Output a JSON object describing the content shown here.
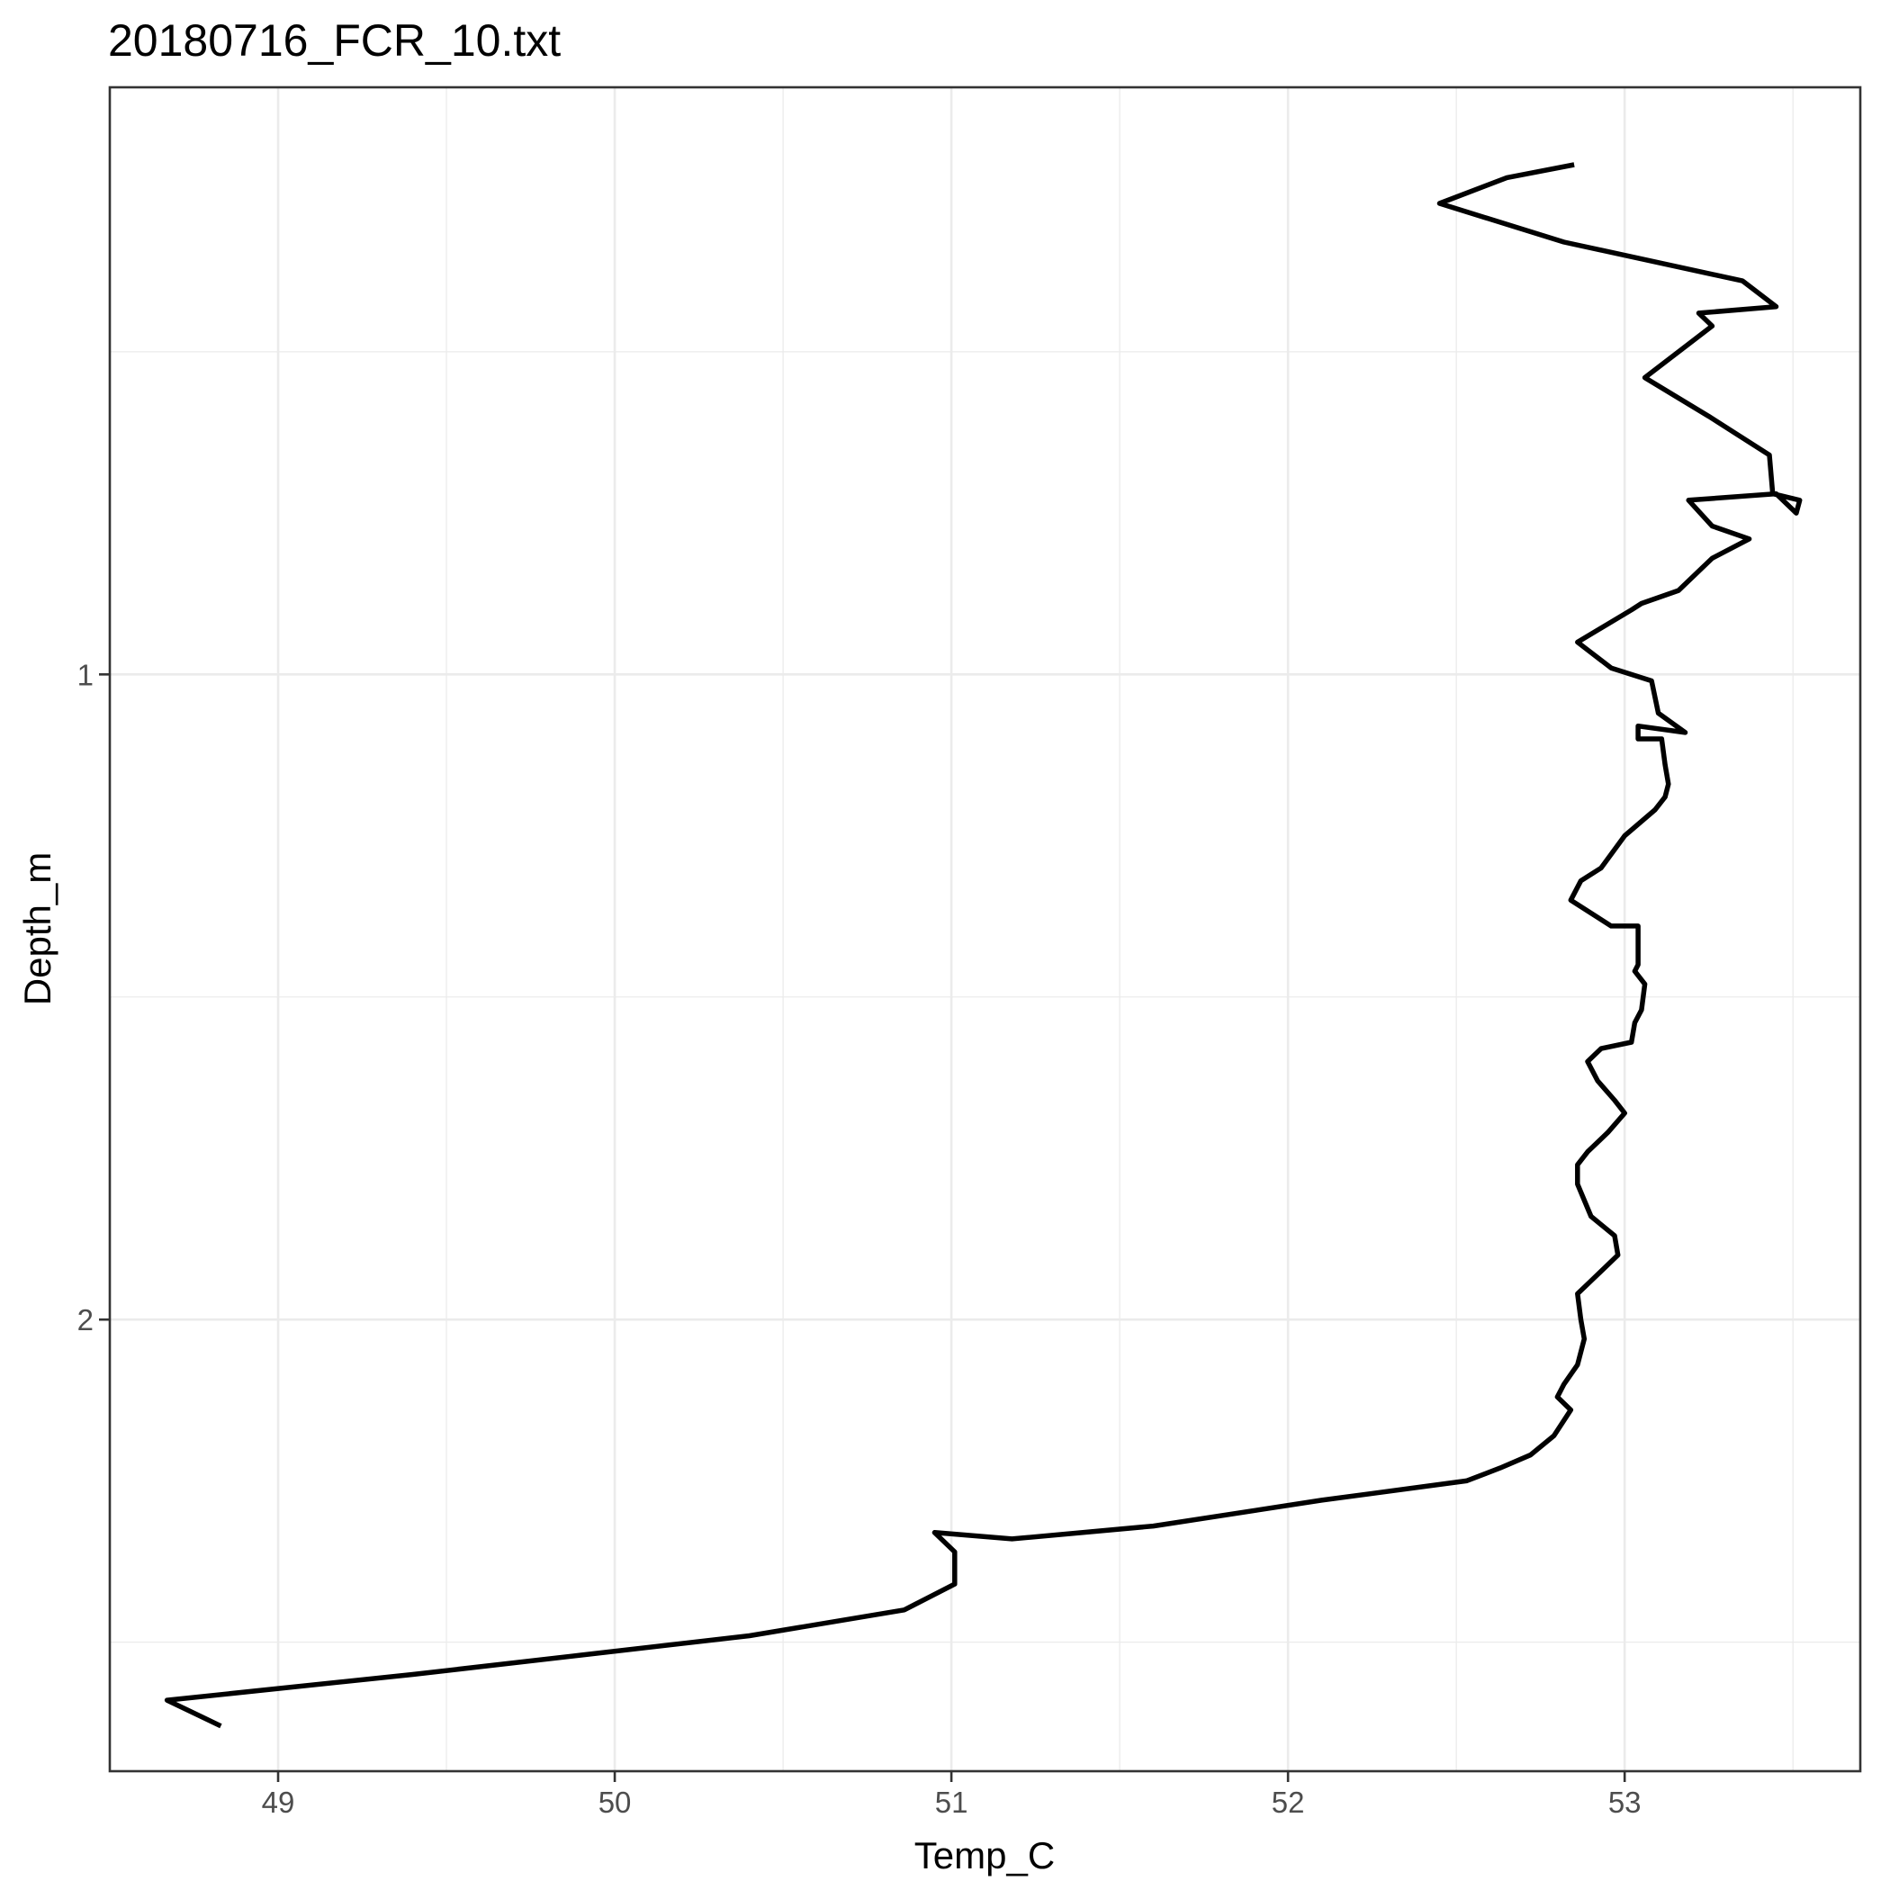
{
  "chart_data": {
    "type": "line",
    "title": "20180716_FCR_10.txt",
    "xlabel": "Temp_C",
    "ylabel": "Depth_m",
    "xlim": [
      48.5,
      53.7
    ],
    "ylim": [
      2.7,
      0.09
    ],
    "y_reversed": true,
    "grid": true,
    "x_ticks": [
      49,
      50,
      51,
      52,
      53
    ],
    "x_tick_labels": [
      "49",
      "50",
      "51",
      "52",
      "53"
    ],
    "y_ticks": [
      1,
      2
    ],
    "y_tick_labels": [
      "1",
      "2"
    ],
    "series": [
      {
        "color": "#000000",
        "x": [
          52.85,
          52.65,
          52.45,
          52.82,
          53.35,
          53.45,
          53.22,
          53.26,
          53.06,
          53.25,
          53.43,
          53.44,
          53.52,
          53.51,
          53.45,
          53.19,
          53.26,
          53.37,
          53.26,
          53.16,
          53.05,
          53.02,
          52.86,
          52.96,
          53.08,
          53.1,
          53.18,
          53.04,
          53.04,
          53.11,
          53.12,
          53.13,
          53.12,
          53.09,
          53.0,
          52.93,
          52.87,
          52.84,
          52.96,
          53.04,
          53.04,
          53.03,
          53.06,
          53.05,
          53.03,
          53.02,
          52.93,
          52.89,
          52.92,
          52.97,
          53.0,
          52.95,
          52.89,
          52.86,
          52.86,
          52.9,
          52.97,
          52.98,
          52.9,
          52.86,
          52.87,
          52.88,
          52.86,
          52.82,
          52.8,
          52.84,
          52.79,
          52.72,
          52.63,
          52.53,
          52.1,
          51.6,
          51.18,
          50.95,
          51.01,
          51.01,
          50.86,
          50.4,
          49.9,
          49.4,
          48.67,
          48.83
        ],
        "y": [
          0.21,
          0.23,
          0.27,
          0.33,
          0.39,
          0.43,
          0.44,
          0.46,
          0.54,
          0.6,
          0.66,
          0.72,
          0.73,
          0.75,
          0.72,
          0.73,
          0.77,
          0.79,
          0.82,
          0.87,
          0.89,
          0.9,
          0.95,
          0.99,
          1.01,
          1.06,
          1.09,
          1.08,
          1.1,
          1.1,
          1.14,
          1.17,
          1.19,
          1.21,
          1.25,
          1.3,
          1.32,
          1.35,
          1.39,
          1.39,
          1.45,
          1.46,
          1.48,
          1.52,
          1.54,
          1.57,
          1.58,
          1.6,
          1.63,
          1.66,
          1.68,
          1.71,
          1.74,
          1.76,
          1.79,
          1.84,
          1.87,
          1.9,
          1.94,
          1.96,
          2.0,
          2.03,
          2.07,
          2.1,
          2.12,
          2.14,
          2.18,
          2.21,
          2.23,
          2.25,
          2.28,
          2.32,
          2.34,
          2.33,
          2.36,
          2.41,
          2.45,
          2.49,
          2.52,
          2.55,
          2.59,
          2.63
        ]
      }
    ]
  }
}
